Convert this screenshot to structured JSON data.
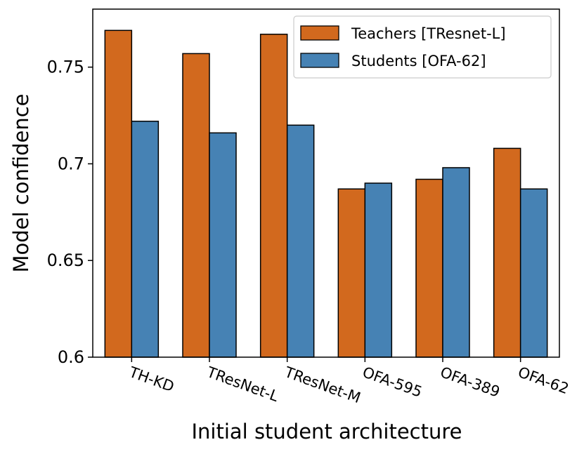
{
  "chart_data": {
    "type": "bar",
    "title": "",
    "xlabel": "Initial student architecture",
    "ylabel": "Model confidence",
    "ylim": [
      0.6,
      0.78
    ],
    "yticks": [
      {
        "value": 0.6,
        "label": "0.6"
      },
      {
        "value": 0.65,
        "label": "0.65"
      },
      {
        "value": 0.7,
        "label": "0.7"
      },
      {
        "value": 0.75,
        "label": "0.75"
      }
    ],
    "categories": [
      "TH-KD",
      "TResNet-L",
      "TResNet-M",
      "OFA-595",
      "OFA-389",
      "OFA-62"
    ],
    "series": [
      {
        "name": "Teachers [TResnet-L]",
        "color": "#D2691E",
        "values": [
          0.769,
          0.757,
          0.767,
          0.687,
          0.692,
          0.708
        ]
      },
      {
        "name": "Students [OFA-62]",
        "color": "#4682B4",
        "values": [
          0.722,
          0.716,
          0.72,
          0.69,
          0.698,
          0.687
        ]
      }
    ],
    "grid": false,
    "legend_position": "top-right"
  }
}
